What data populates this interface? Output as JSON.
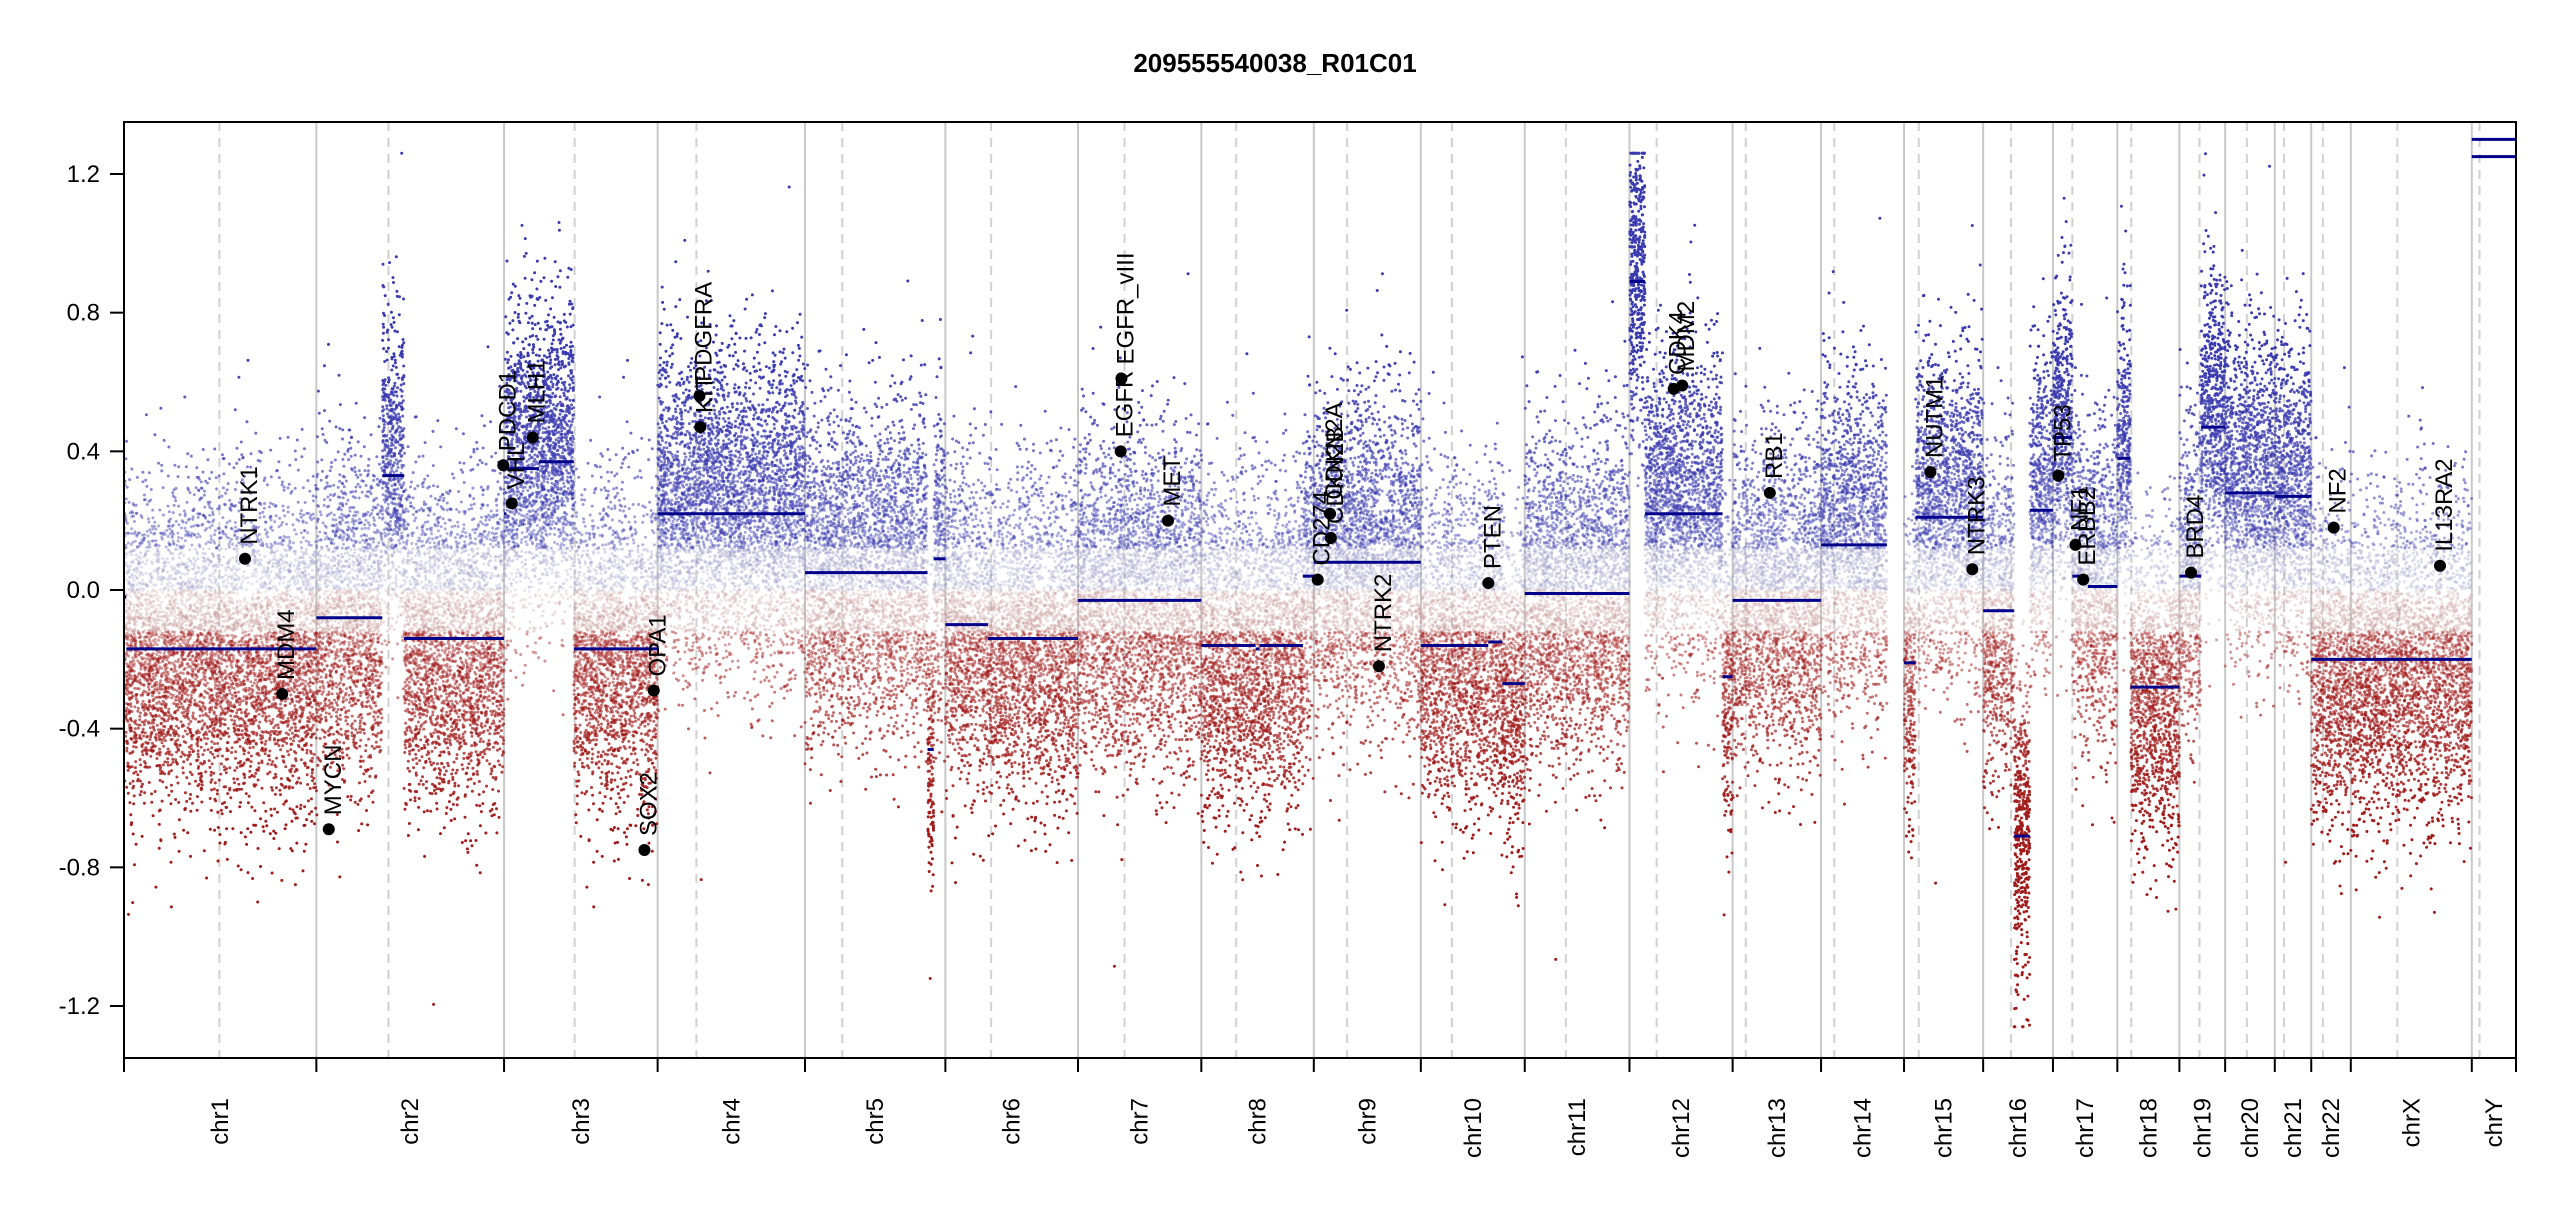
{
  "chart_data": {
    "type": "scatter",
    "title": "209555540038_R01C01",
    "xlabel": "",
    "ylabel": "",
    "ylim": [
      -1.35,
      1.35
    ],
    "yticks": [
      -1.2,
      -0.8,
      -0.4,
      0.0,
      0.4,
      0.8,
      1.2
    ],
    "ytick_labels": [
      "-1.2",
      "-0.8",
      "-0.4",
      "0.0",
      "0.4",
      "0.8",
      "1.2"
    ],
    "grid": false,
    "colors": {
      "gain": "#3b3bb0",
      "loss": "#a11a1a",
      "segment": "#00008b",
      "neutral": "#b8b8b8",
      "gene": "#000000"
    },
    "chromosomes": [
      {
        "name": "chr1",
        "length": 248
      },
      {
        "name": "chr2",
        "length": 242
      },
      {
        "name": "chr3",
        "length": 198
      },
      {
        "name": "chr4",
        "length": 190
      },
      {
        "name": "chr5",
        "length": 181
      },
      {
        "name": "chr6",
        "length": 171
      },
      {
        "name": "chr7",
        "length": 159
      },
      {
        "name": "chr8",
        "length": 145
      },
      {
        "name": "chr9",
        "length": 138
      },
      {
        "name": "chr10",
        "length": 134
      },
      {
        "name": "chr11",
        "length": 135
      },
      {
        "name": "chr12",
        "length": 133
      },
      {
        "name": "chr13",
        "length": 114
      },
      {
        "name": "chr14",
        "length": 107
      },
      {
        "name": "chr15",
        "length": 102
      },
      {
        "name": "chr16",
        "length": 90
      },
      {
        "name": "chr17",
        "length": 83
      },
      {
        "name": "chr18",
        "length": 80
      },
      {
        "name": "chr19",
        "length": 59
      },
      {
        "name": "chr20",
        "length": 64
      },
      {
        "name": "chr21",
        "length": 47
      },
      {
        "name": "chr22",
        "length": 51
      },
      {
        "name": "chrX",
        "length": 156
      },
      {
        "name": "chrY",
        "length": 57
      }
    ],
    "centromeres": [
      123,
      93,
      91,
      50,
      48,
      59,
      60,
      45,
      43,
      40,
      53,
      35,
      17,
      17,
      19,
      36,
      25,
      18,
      26,
      28,
      12,
      15,
      60,
      10
    ],
    "segments": [
      {
        "chr": "chr1",
        "start": 0,
        "end": 3,
        "value": -0.02
      },
      {
        "chr": "chr1",
        "start": 3,
        "end": 248,
        "value": -0.17
      },
      {
        "chr": "chr2",
        "start": 0,
        "end": 85,
        "value": -0.08
      },
      {
        "chr": "chr2",
        "start": 85,
        "end": 113,
        "value": 0.33
      },
      {
        "chr": "chr2",
        "start": 113,
        "end": 242,
        "value": -0.14
      },
      {
        "chr": "chr3",
        "start": 0,
        "end": 3,
        "value": 0.22
      },
      {
        "chr": "chr3",
        "start": 3,
        "end": 45,
        "value": 0.35
      },
      {
        "chr": "chr3",
        "start": 45,
        "end": 90,
        "value": 0.37
      },
      {
        "chr": "chr3",
        "start": 90,
        "end": 198,
        "value": -0.17
      },
      {
        "chr": "chr4",
        "start": 0,
        "end": 190,
        "value": 0.22
      },
      {
        "chr": "chr5",
        "start": 0,
        "end": 158,
        "value": 0.05
      },
      {
        "chr": "chr5",
        "start": 158,
        "end": 166,
        "value": -0.46
      },
      {
        "chr": "chr5",
        "start": 166,
        "end": 181,
        "value": 0.09
      },
      {
        "chr": "chr6",
        "start": 0,
        "end": 55,
        "value": -0.1
      },
      {
        "chr": "chr6",
        "start": 55,
        "end": 171,
        "value": -0.14
      },
      {
        "chr": "chr7",
        "start": 0,
        "end": 159,
        "value": -0.03
      },
      {
        "chr": "chr8",
        "start": 0,
        "end": 70,
        "value": -0.16
      },
      {
        "chr": "chr8",
        "start": 70,
        "end": 75,
        "value": -0.17
      },
      {
        "chr": "chr8",
        "start": 75,
        "end": 131,
        "value": -0.16
      },
      {
        "chr": "chr8",
        "start": 131,
        "end": 145,
        "value": 0.04
      },
      {
        "chr": "chr9",
        "start": 0,
        "end": 138,
        "value": 0.08
      },
      {
        "chr": "chr10",
        "start": 0,
        "end": 87,
        "value": -0.16
      },
      {
        "chr": "chr10",
        "start": 87,
        "end": 105,
        "value": -0.15
      },
      {
        "chr": "chr10",
        "start": 105,
        "end": 134,
        "value": -0.27
      },
      {
        "chr": "chr11",
        "start": 0,
        "end": 135,
        "value": -0.01
      },
      {
        "chr": "chr12",
        "start": 0,
        "end": 20,
        "value": 0.89
      },
      {
        "chr": "chr12",
        "start": 20,
        "end": 120,
        "value": 0.22
      },
      {
        "chr": "chr12",
        "start": 120,
        "end": 133,
        "value": -0.25
      },
      {
        "chr": "chr13",
        "start": 0,
        "end": 114,
        "value": -0.03
      },
      {
        "chr": "chr14",
        "start": 0,
        "end": 85,
        "value": 0.13
      },
      {
        "chr": "chr15",
        "start": 0,
        "end": 15,
        "value": -0.21
      },
      {
        "chr": "chr15",
        "start": 15,
        "end": 102,
        "value": 0.21
      },
      {
        "chr": "chr16",
        "start": 0,
        "end": 40,
        "value": -0.06
      },
      {
        "chr": "chr16",
        "start": 40,
        "end": 60,
        "value": -0.71
      },
      {
        "chr": "chr16",
        "start": 60,
        "end": 90,
        "value": 0.23
      },
      {
        "chr": "chr17",
        "start": 0,
        "end": 25,
        "value": 0.44
      },
      {
        "chr": "chr17",
        "start": 25,
        "end": 45,
        "value": 0.04
      },
      {
        "chr": "chr17",
        "start": 45,
        "end": 83,
        "value": 0.01
      },
      {
        "chr": "chr18",
        "start": 0,
        "end": 17,
        "value": 0.38
      },
      {
        "chr": "chr18",
        "start": 17,
        "end": 80,
        "value": -0.28
      },
      {
        "chr": "chr19",
        "start": 0,
        "end": 28,
        "value": 0.04
      },
      {
        "chr": "chr19",
        "start": 28,
        "end": 59,
        "value": 0.47
      },
      {
        "chr": "chr20",
        "start": 0,
        "end": 64,
        "value": 0.28
      },
      {
        "chr": "chr21",
        "start": 0,
        "end": 47,
        "value": 0.27
      },
      {
        "chr": "chr22",
        "start": 0,
        "end": 51,
        "value": -0.2
      },
      {
        "chr": "chrX",
        "start": 0,
        "end": 156,
        "value": -0.2
      },
      {
        "chr": "chrY",
        "start": 0,
        "end": 57,
        "value": 1.3
      },
      {
        "chr": "chrY",
        "start": 0,
        "end": 57,
        "value": 1.25
      }
    ],
    "genes": [
      {
        "name": "NTRK1",
        "chr": "chr1",
        "pos": 156,
        "value": 0.09
      },
      {
        "name": "MDM4",
        "chr": "chr1",
        "pos": 204,
        "value": -0.3
      },
      {
        "name": "MYCN",
        "chr": "chr2",
        "pos": 16,
        "value": -0.69
      },
      {
        "name": "PDCD1",
        "chr": "chr2",
        "pos": 241,
        "value": 0.36
      },
      {
        "name": "VHL",
        "chr": "chr3",
        "pos": 10,
        "value": 0.25
      },
      {
        "name": "MLH1",
        "chr": "chr3",
        "pos": 37,
        "value": 0.44
      },
      {
        "name": "SOX2",
        "chr": "chr3",
        "pos": 181,
        "value": -0.75
      },
      {
        "name": "OPA1",
        "chr": "chr3",
        "pos": 193,
        "value": -0.29
      },
      {
        "name": "PDGFRA",
        "chr": "chr4",
        "pos": 54,
        "value": 0.56
      },
      {
        "name": "KIT",
        "chr": "chr4",
        "pos": 55,
        "value": 0.47
      },
      {
        "name": "EGFR",
        "chr": "chr7",
        "pos": 55,
        "value": 0.4
      },
      {
        "name": "EGFR_vIII",
        "chr": "chr7",
        "pos": 56,
        "value": 0.61
      },
      {
        "name": "MET",
        "chr": "chr7",
        "pos": 116,
        "value": 0.2
      },
      {
        "name": "CDKN2A",
        "chr": "chr9",
        "pos": 21,
        "value": 0.22
      },
      {
        "name": "CDKN2B",
        "chr": "chr9",
        "pos": 22,
        "value": 0.15
      },
      {
        "name": "CD274",
        "chr": "chr9",
        "pos": 5,
        "value": 0.03
      },
      {
        "name": "NTRK2",
        "chr": "chr9",
        "pos": 84,
        "value": -0.22
      },
      {
        "name": "PTEN",
        "chr": "chr10",
        "pos": 87,
        "value": 0.02
      },
      {
        "name": "CDK4",
        "chr": "chr12",
        "pos": 57,
        "value": 0.58
      },
      {
        "name": "MDM2",
        "chr": "chr12",
        "pos": 68,
        "value": 0.59
      },
      {
        "name": "RB1",
        "chr": "chr13",
        "pos": 48,
        "value": 0.28
      },
      {
        "name": "NUTM1",
        "chr": "chr15",
        "pos": 34,
        "value": 0.34
      },
      {
        "name": "NTRK3",
        "chr": "chr15",
        "pos": 88,
        "value": 0.06
      },
      {
        "name": "TP53",
        "chr": "chr17",
        "pos": 7,
        "value": 0.33
      },
      {
        "name": "NF1",
        "chr": "chr17",
        "pos": 29,
        "value": 0.13
      },
      {
        "name": "ERBB2",
        "chr": "chr17",
        "pos": 39,
        "value": 0.03
      },
      {
        "name": "BRD4",
        "chr": "chr19",
        "pos": 15,
        "value": 0.05
      },
      {
        "name": "NF2",
        "chr": "chr22",
        "pos": 29,
        "value": 0.18
      },
      {
        "name": "IL13RA2",
        "chrom": "chrX",
        "chr": "chrX",
        "pos": 115,
        "value": 0.07
      }
    ]
  }
}
